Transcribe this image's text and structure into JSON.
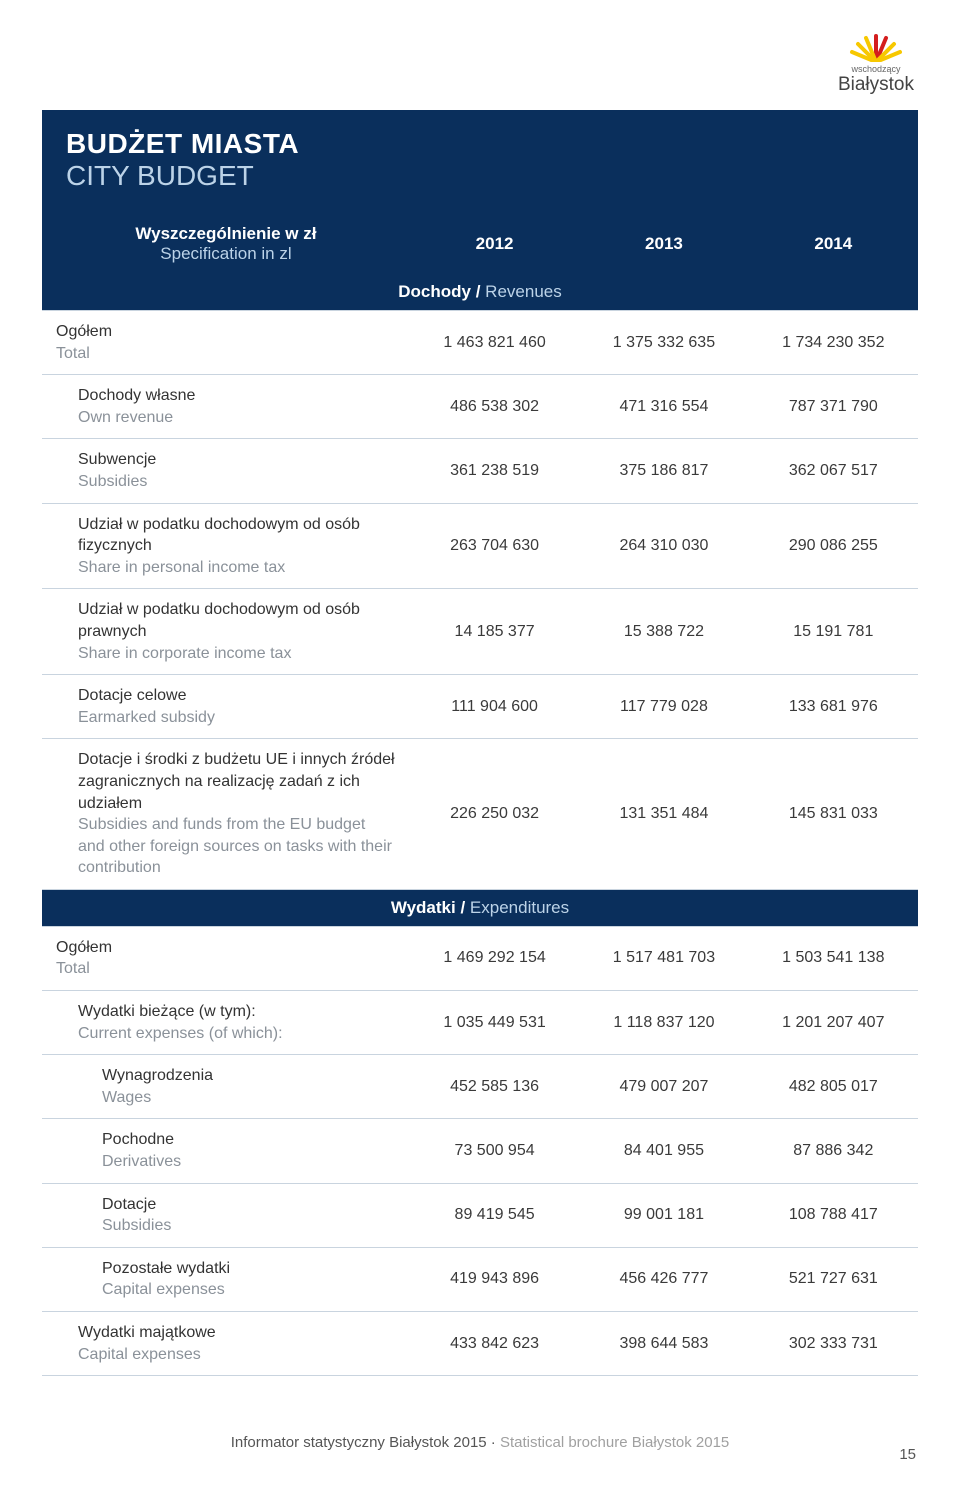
{
  "logo": {
    "small": "wschodzący",
    "main": "Białystok"
  },
  "title": {
    "pl": "BUDŻET MIASTA",
    "en": "CITY BUDGET"
  },
  "header": {
    "spec_pl": "Wyszczególnienie w zł",
    "spec_en": "Specification in zl",
    "y2012": "2012",
    "y2013": "2013",
    "y2014": "2014"
  },
  "section_rev": {
    "pl": "Dochody / ",
    "en": "Revenues"
  },
  "section_exp": {
    "pl": "Wydatki / ",
    "en": "Expenditures"
  },
  "rev": [
    {
      "pl": "Ogółem",
      "en": "Total",
      "ind": 0,
      "v": [
        "1 463 821 460",
        "1 375 332 635",
        "1 734 230 352"
      ]
    },
    {
      "pl": "Dochody własne",
      "en": "Own revenue",
      "ind": 1,
      "v": [
        "486 538 302",
        "471 316 554",
        "787 371 790"
      ]
    },
    {
      "pl": "Subwencje",
      "en": "Subsidies",
      "ind": 1,
      "v": [
        "361 238 519",
        "375 186 817",
        "362 067 517"
      ]
    },
    {
      "pl": "Udział w podatku dochodowym od osób fizycznych",
      "en": "Share in personal income tax",
      "ind": 1,
      "v": [
        "263 704 630",
        "264 310 030",
        "290 086 255"
      ]
    },
    {
      "pl": "Udział w podatku dochodowym od osób prawnych",
      "en": "Share in corporate income tax",
      "ind": 1,
      "v": [
        "14 185 377",
        "15 388 722",
        "15 191 781"
      ]
    },
    {
      "pl": "Dotacje celowe",
      "en": "Earmarked subsidy",
      "ind": 1,
      "v": [
        "111 904 600",
        "117 779 028",
        "133 681 976"
      ]
    },
    {
      "pl": "Dotacje i środki z budżetu UE i innych źródeł zagranicznych na realizację zadań z ich udziałem",
      "en": "Subsidies and funds from the EU budget and other foreign sources on tasks with their contribution",
      "ind": 1,
      "v": [
        "226 250 032",
        "131 351 484",
        "145 831 033"
      ]
    }
  ],
  "exp": [
    {
      "pl": "Ogółem",
      "en": "Total",
      "ind": 0,
      "v": [
        "1 469 292 154",
        "1 517 481 703",
        "1 503 541 138"
      ]
    },
    {
      "pl": "Wydatki bieżące (w tym):",
      "en": "Current expenses (of which):",
      "ind": 1,
      "v": [
        "1 035 449 531",
        "1 118 837 120",
        "1 201 207 407"
      ]
    },
    {
      "pl": "Wynagrodzenia",
      "en": "Wages",
      "ind": 2,
      "v": [
        "452 585 136",
        "479 007 207",
        "482 805 017"
      ]
    },
    {
      "pl": "Pochodne",
      "en": "Derivatives",
      "ind": 2,
      "v": [
        "73 500 954",
        "84 401 955",
        "87 886 342"
      ]
    },
    {
      "pl": "Dotacje",
      "en": "Subsidies",
      "ind": 2,
      "v": [
        "89 419 545",
        "99 001 181",
        "108 788 417"
      ]
    },
    {
      "pl": "Pozostałe wydatki",
      "en": "Capital expenses",
      "ind": 2,
      "v": [
        "419 943 896",
        "456 426 777",
        "521 727 631"
      ]
    },
    {
      "pl": "Wydatki majątkowe",
      "en": "Capital expenses",
      "ind": 1,
      "v": [
        "433 842 623",
        "398 644 583",
        "302 333 731"
      ]
    }
  ],
  "footer": {
    "pl": "Informator statystyczny Białystok 2015 · ",
    "en": "Statistical brochure Białystok 2015"
  },
  "page_number": "15",
  "colors": {
    "header_bg": "#0a2f5c",
    "header_sub": "#bcd3e8",
    "row_border": "#c9d4df",
    "en_text": "#8a9199",
    "sun_yellow": "#f7c800",
    "sun_red": "#d41e1e"
  }
}
